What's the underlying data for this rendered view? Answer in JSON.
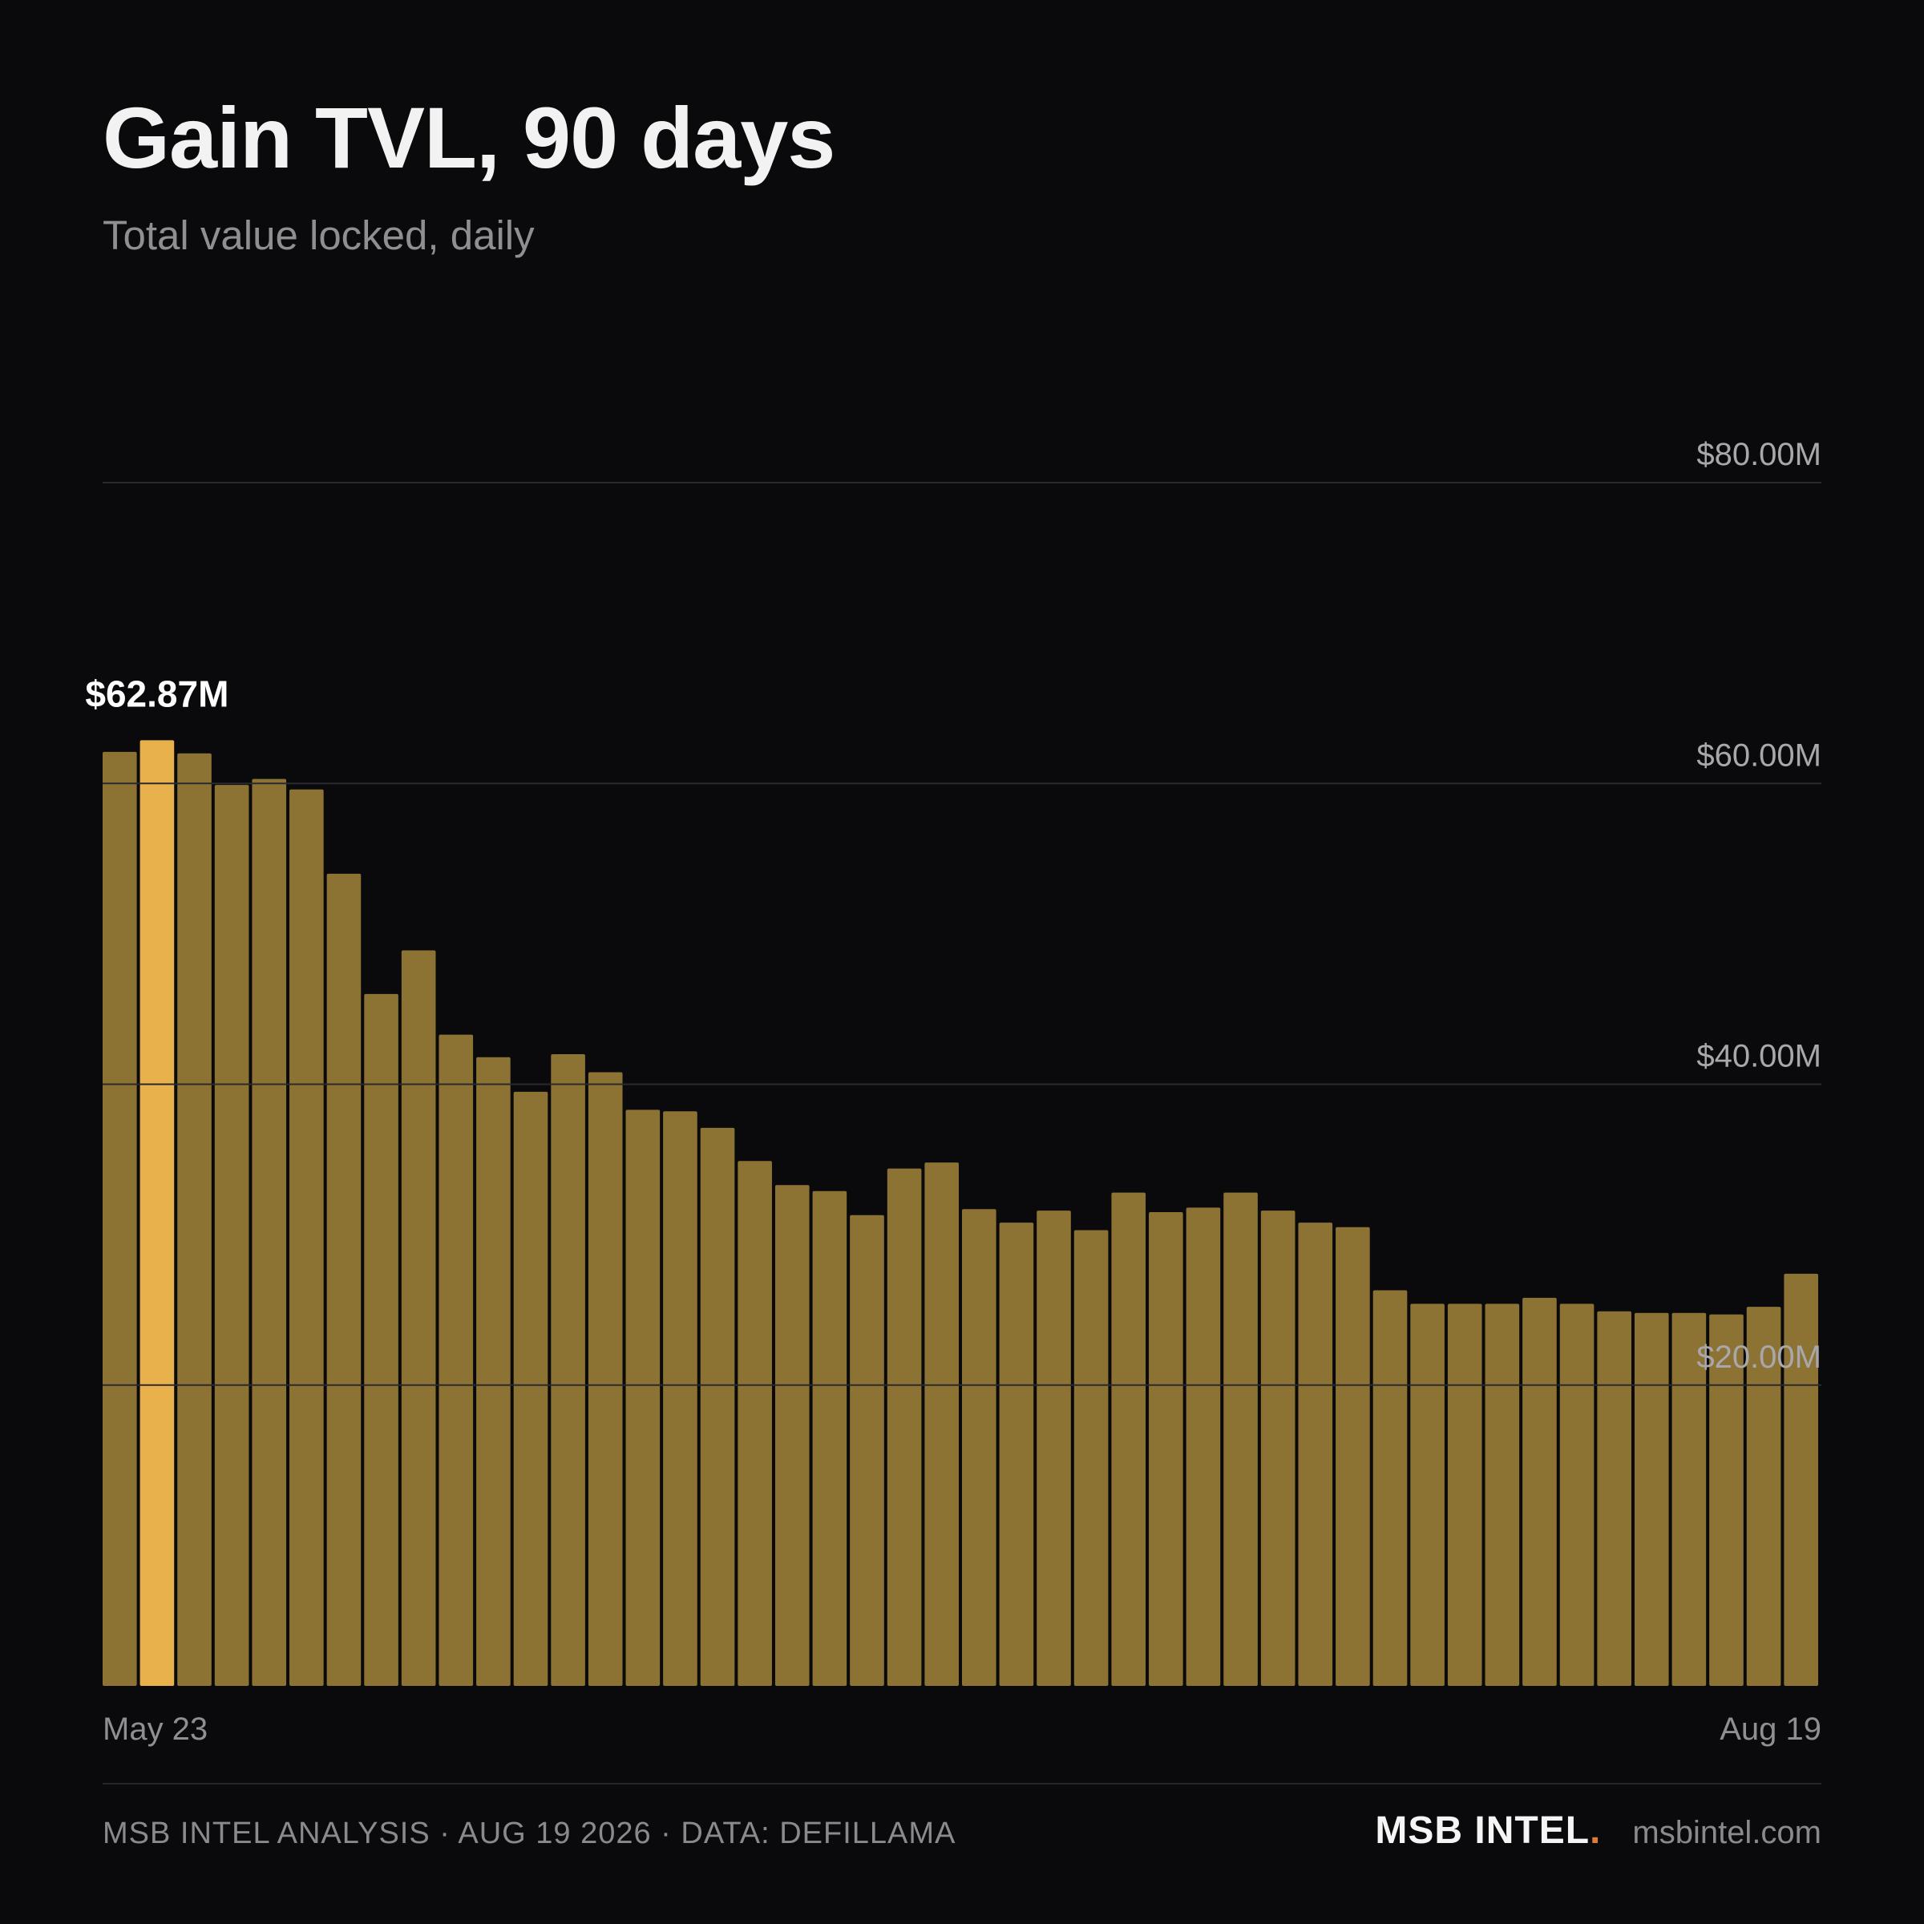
{
  "header": {
    "title": "Gain TVL, 90 days",
    "subtitle": "Total value locked, daily"
  },
  "colors": {
    "background": "#0a0a0c",
    "bar": "#8c7334",
    "highlight_bar": "#e8b14c",
    "grid": "#2a2a2e",
    "brand_dot": "#e07a3a"
  },
  "chart_data": {
    "type": "bar",
    "title": "Gain TVL, 90 days",
    "subtitle": "Total value locked, daily",
    "x_start_label": "May 23",
    "x_end_label": "Aug 19",
    "ylim": [
      0,
      80
    ],
    "y_unit": "$M",
    "y_ticks": [
      {
        "value": 20,
        "label": "$20.00M"
      },
      {
        "value": 40,
        "label": "$40.00M"
      },
      {
        "value": 60,
        "label": "$60.00M"
      },
      {
        "value": 80,
        "label": "$80.00M"
      }
    ],
    "grid": true,
    "highlight": {
      "index": 1,
      "label": "$62.87M"
    },
    "values": [
      62.1,
      62.87,
      62.0,
      59.9,
      60.3,
      59.6,
      54.0,
      46.0,
      48.9,
      43.3,
      41.8,
      39.5,
      42.0,
      40.8,
      38.3,
      38.2,
      37.1,
      34.9,
      33.3,
      32.9,
      31.3,
      34.4,
      34.8,
      31.7,
      30.8,
      31.6,
      30.3,
      32.8,
      31.5,
      31.8,
      32.8,
      31.6,
      30.8,
      30.5,
      26.3,
      25.4,
      25.4,
      25.4,
      25.8,
      25.4,
      24.9,
      24.8,
      24.8,
      24.7,
      25.2,
      27.4
    ]
  },
  "footer": {
    "source": "MSB INTEL ANALYSIS · AUG 19 2026 · DATA: DEFILLAMA",
    "brand": "MSB INTEL",
    "brand_dot": ".",
    "site": "msbintel.com"
  }
}
